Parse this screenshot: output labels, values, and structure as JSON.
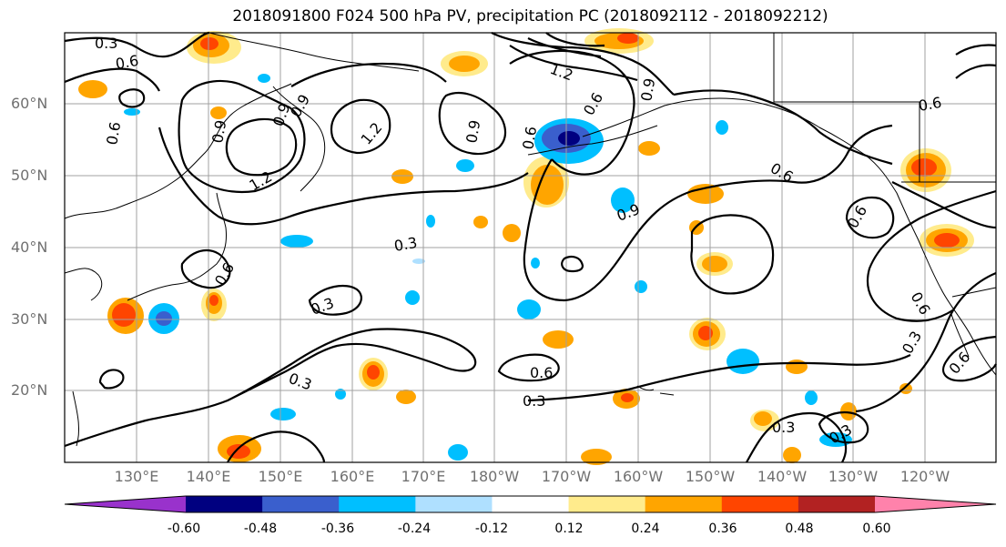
{
  "title": "2018091800 F024 500 hPa PV, precipitation PC (2018092112 - 2018092212)",
  "lat_labels": [
    "60°N",
    "50°N",
    "40°N",
    "30°N",
    "20°N"
  ],
  "lon_labels": [
    "130°E",
    "140°E",
    "150°E",
    "160°E",
    "170°E",
    "180°W",
    "170°W",
    "160°W",
    "150°W",
    "140°W",
    "130°W",
    "120°W"
  ],
  "contour_labels": [
    "0.3",
    "0.6",
    "0.6",
    "0.9",
    "1.2",
    "0.9",
    "0.9",
    "1.2",
    "0.9",
    "0.6",
    "0.9",
    "0.6",
    "0.6",
    "1.2",
    "0.3",
    "0.6",
    "0.3",
    "0.3",
    "0.6",
    "0.3",
    "0.6",
    "0.3",
    "0.6",
    "0.3",
    "0.6",
    "0.9",
    "0.3",
    "0.6"
  ],
  "colorbar": {
    "ticks": [
      "-0.60",
      "-0.48",
      "-0.36",
      "-0.24",
      "-0.12",
      "0.12",
      "0.24",
      "0.36",
      "0.48",
      "0.60"
    ],
    "colors": [
      "#9932cc",
      "#000080",
      "#3a5fcd",
      "#00bfff",
      "#afe0ff",
      "#ffffff",
      "#ffeb8c",
      "#ffa500",
      "#ff4500",
      "#b22222",
      "#ff82ab"
    ]
  },
  "palette": {
    "pale_blue": "#afe0ff",
    "sky_blue": "#00bfff",
    "royal_blue": "#3a5fcd",
    "pale_yellow": "#ffeb8c",
    "orange": "#ffa500",
    "red_orange": "#ff4500"
  }
}
